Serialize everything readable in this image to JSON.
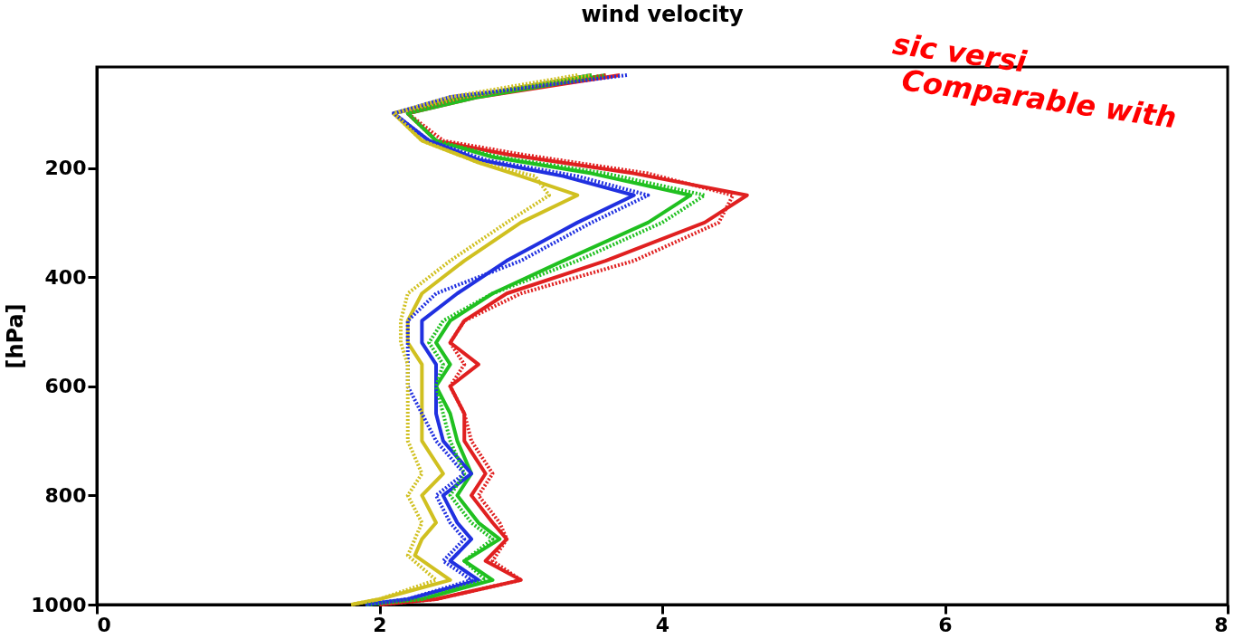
{
  "chart_data": {
    "type": "line",
    "title": "wind velocity",
    "ylabel": "[hPa]",
    "xlim": [
      0,
      8
    ],
    "xticks": [
      0,
      2,
      4,
      6,
      8
    ],
    "ylim": [
      1000,
      15
    ],
    "yticks": [
      200,
      400,
      600,
      800,
      1000
    ],
    "grid": false,
    "annotations": [
      "sic versi",
      "Comparable with"
    ],
    "series": [
      {
        "color": "#e02020",
        "line_style": "solid",
        "x": [
          3.7,
          2.7,
          2.2,
          2.4,
          2.9,
          3.8,
          4.6,
          4.3,
          3.6,
          2.9,
          2.6,
          2.5,
          2.7,
          2.5,
          2.6,
          2.6,
          2.75,
          2.65,
          2.8,
          2.9,
          2.75,
          3.0,
          2.4,
          2.0
        ],
        "values": [
          30,
          70,
          100,
          150,
          175,
          210,
          250,
          300,
          370,
          430,
          480,
          520,
          560,
          600,
          650,
          700,
          760,
          800,
          850,
          880,
          920,
          955,
          990,
          1000
        ]
      },
      {
        "color": "#20c020",
        "line_style": "solid",
        "x": [
          3.6,
          2.7,
          2.2,
          2.4,
          2.8,
          3.5,
          4.2,
          3.9,
          3.3,
          2.8,
          2.5,
          2.4,
          2.5,
          2.4,
          2.5,
          2.55,
          2.65,
          2.55,
          2.7,
          2.85,
          2.6,
          2.8,
          2.3,
          1.9
        ],
        "values": [
          30,
          70,
          100,
          150,
          180,
          210,
          250,
          300,
          370,
          430,
          480,
          520,
          560,
          600,
          650,
          700,
          760,
          800,
          850,
          880,
          920,
          955,
          990,
          1000
        ]
      },
      {
        "color": "#2030e0",
        "line_style": "solid",
        "x": [
          3.5,
          2.6,
          2.1,
          2.35,
          2.7,
          3.3,
          3.8,
          3.4,
          2.9,
          2.55,
          2.3,
          2.3,
          2.4,
          2.4,
          2.4,
          2.45,
          2.65,
          2.45,
          2.55,
          2.65,
          2.5,
          2.7,
          2.2,
          1.9
        ],
        "values": [
          30,
          70,
          100,
          150,
          185,
          215,
          250,
          300,
          370,
          430,
          480,
          520,
          560,
          600,
          650,
          700,
          760,
          800,
          850,
          880,
          920,
          955,
          990,
          1000
        ]
      },
      {
        "color": "#d0c020",
        "line_style": "solid",
        "x": [
          3.5,
          2.6,
          2.1,
          2.3,
          2.7,
          3.0,
          3.4,
          3.0,
          2.6,
          2.3,
          2.2,
          2.2,
          2.3,
          2.3,
          2.3,
          2.3,
          2.45,
          2.3,
          2.4,
          2.3,
          2.25,
          2.5,
          2.0,
          1.8
        ],
        "values": [
          30,
          70,
          100,
          150,
          190,
          215,
          250,
          300,
          370,
          430,
          480,
          520,
          560,
          600,
          650,
          700,
          760,
          800,
          850,
          880,
          910,
          955,
          990,
          1000
        ]
      },
      {
        "color": "#e02020",
        "line_style": "dotted",
        "x": [
          3.6,
          2.6,
          2.2,
          2.45,
          3.0,
          3.9,
          4.5,
          4.4,
          3.8,
          3.0,
          2.6,
          2.5,
          2.6,
          2.5,
          2.6,
          2.65,
          2.8,
          2.7,
          2.85,
          2.9,
          2.8,
          3.0,
          2.4,
          2.0
        ],
        "values": [
          30,
          70,
          100,
          150,
          175,
          210,
          250,
          300,
          370,
          430,
          480,
          520,
          560,
          600,
          650,
          700,
          760,
          800,
          850,
          880,
          920,
          955,
          990,
          1000
        ]
      },
      {
        "color": "#20c020",
        "line_style": "dotted",
        "x": [
          3.5,
          2.6,
          2.2,
          2.4,
          2.85,
          3.6,
          4.3,
          4.0,
          3.4,
          2.8,
          2.45,
          2.35,
          2.45,
          2.4,
          2.45,
          2.5,
          2.6,
          2.5,
          2.65,
          2.8,
          2.6,
          2.75,
          2.3,
          1.9
        ],
        "values": [
          30,
          70,
          100,
          150,
          180,
          210,
          250,
          300,
          370,
          430,
          480,
          520,
          560,
          600,
          650,
          700,
          760,
          800,
          850,
          880,
          920,
          955,
          990,
          1000
        ]
      },
      {
        "color": "#2030e0",
        "line_style": "dotted",
        "x": [
          3.75,
          2.5,
          2.1,
          2.35,
          2.75,
          3.4,
          3.9,
          3.5,
          3.0,
          2.4,
          2.2,
          2.2,
          2.2,
          2.2,
          2.3,
          2.4,
          2.6,
          2.4,
          2.5,
          2.6,
          2.45,
          2.65,
          2.2,
          1.9
        ],
        "values": [
          30,
          70,
          100,
          150,
          185,
          215,
          250,
          300,
          370,
          430,
          480,
          520,
          560,
          600,
          650,
          700,
          760,
          800,
          850,
          880,
          920,
          955,
          990,
          1000
        ]
      },
      {
        "color": "#d0c020",
        "line_style": "dotted",
        "x": [
          3.4,
          2.5,
          2.1,
          2.3,
          2.7,
          3.1,
          3.2,
          2.9,
          2.5,
          2.2,
          2.15,
          2.15,
          2.2,
          2.2,
          2.2,
          2.2,
          2.3,
          2.2,
          2.3,
          2.25,
          2.2,
          2.4,
          2.0,
          1.8
        ],
        "values": [
          30,
          70,
          100,
          150,
          190,
          215,
          250,
          300,
          370,
          430,
          480,
          520,
          560,
          600,
          650,
          700,
          760,
          800,
          850,
          880,
          910,
          955,
          990,
          1000
        ]
      }
    ]
  }
}
